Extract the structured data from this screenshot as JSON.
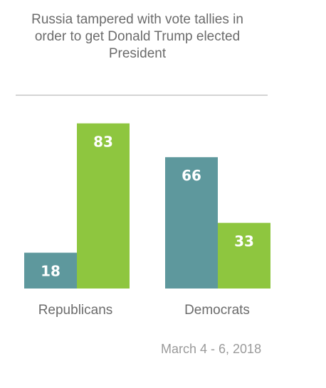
{
  "chart_data": {
    "type": "bar",
    "title_lines": [
      "Russia tampered with vote tallies in",
      "order to get Donald Trump elected",
      "President"
    ],
    "categories": [
      "Republicans",
      "Democrats"
    ],
    "series": [
      {
        "values": [
          18,
          66
        ],
        "color": "#5e989d"
      },
      {
        "values": [
          83,
          33
        ],
        "color": "#8ec63f"
      }
    ],
    "ylim": [
      0,
      100
    ],
    "grid": false,
    "legend": "none"
  },
  "footer": {
    "date": "March 4 - 6, 2018"
  }
}
